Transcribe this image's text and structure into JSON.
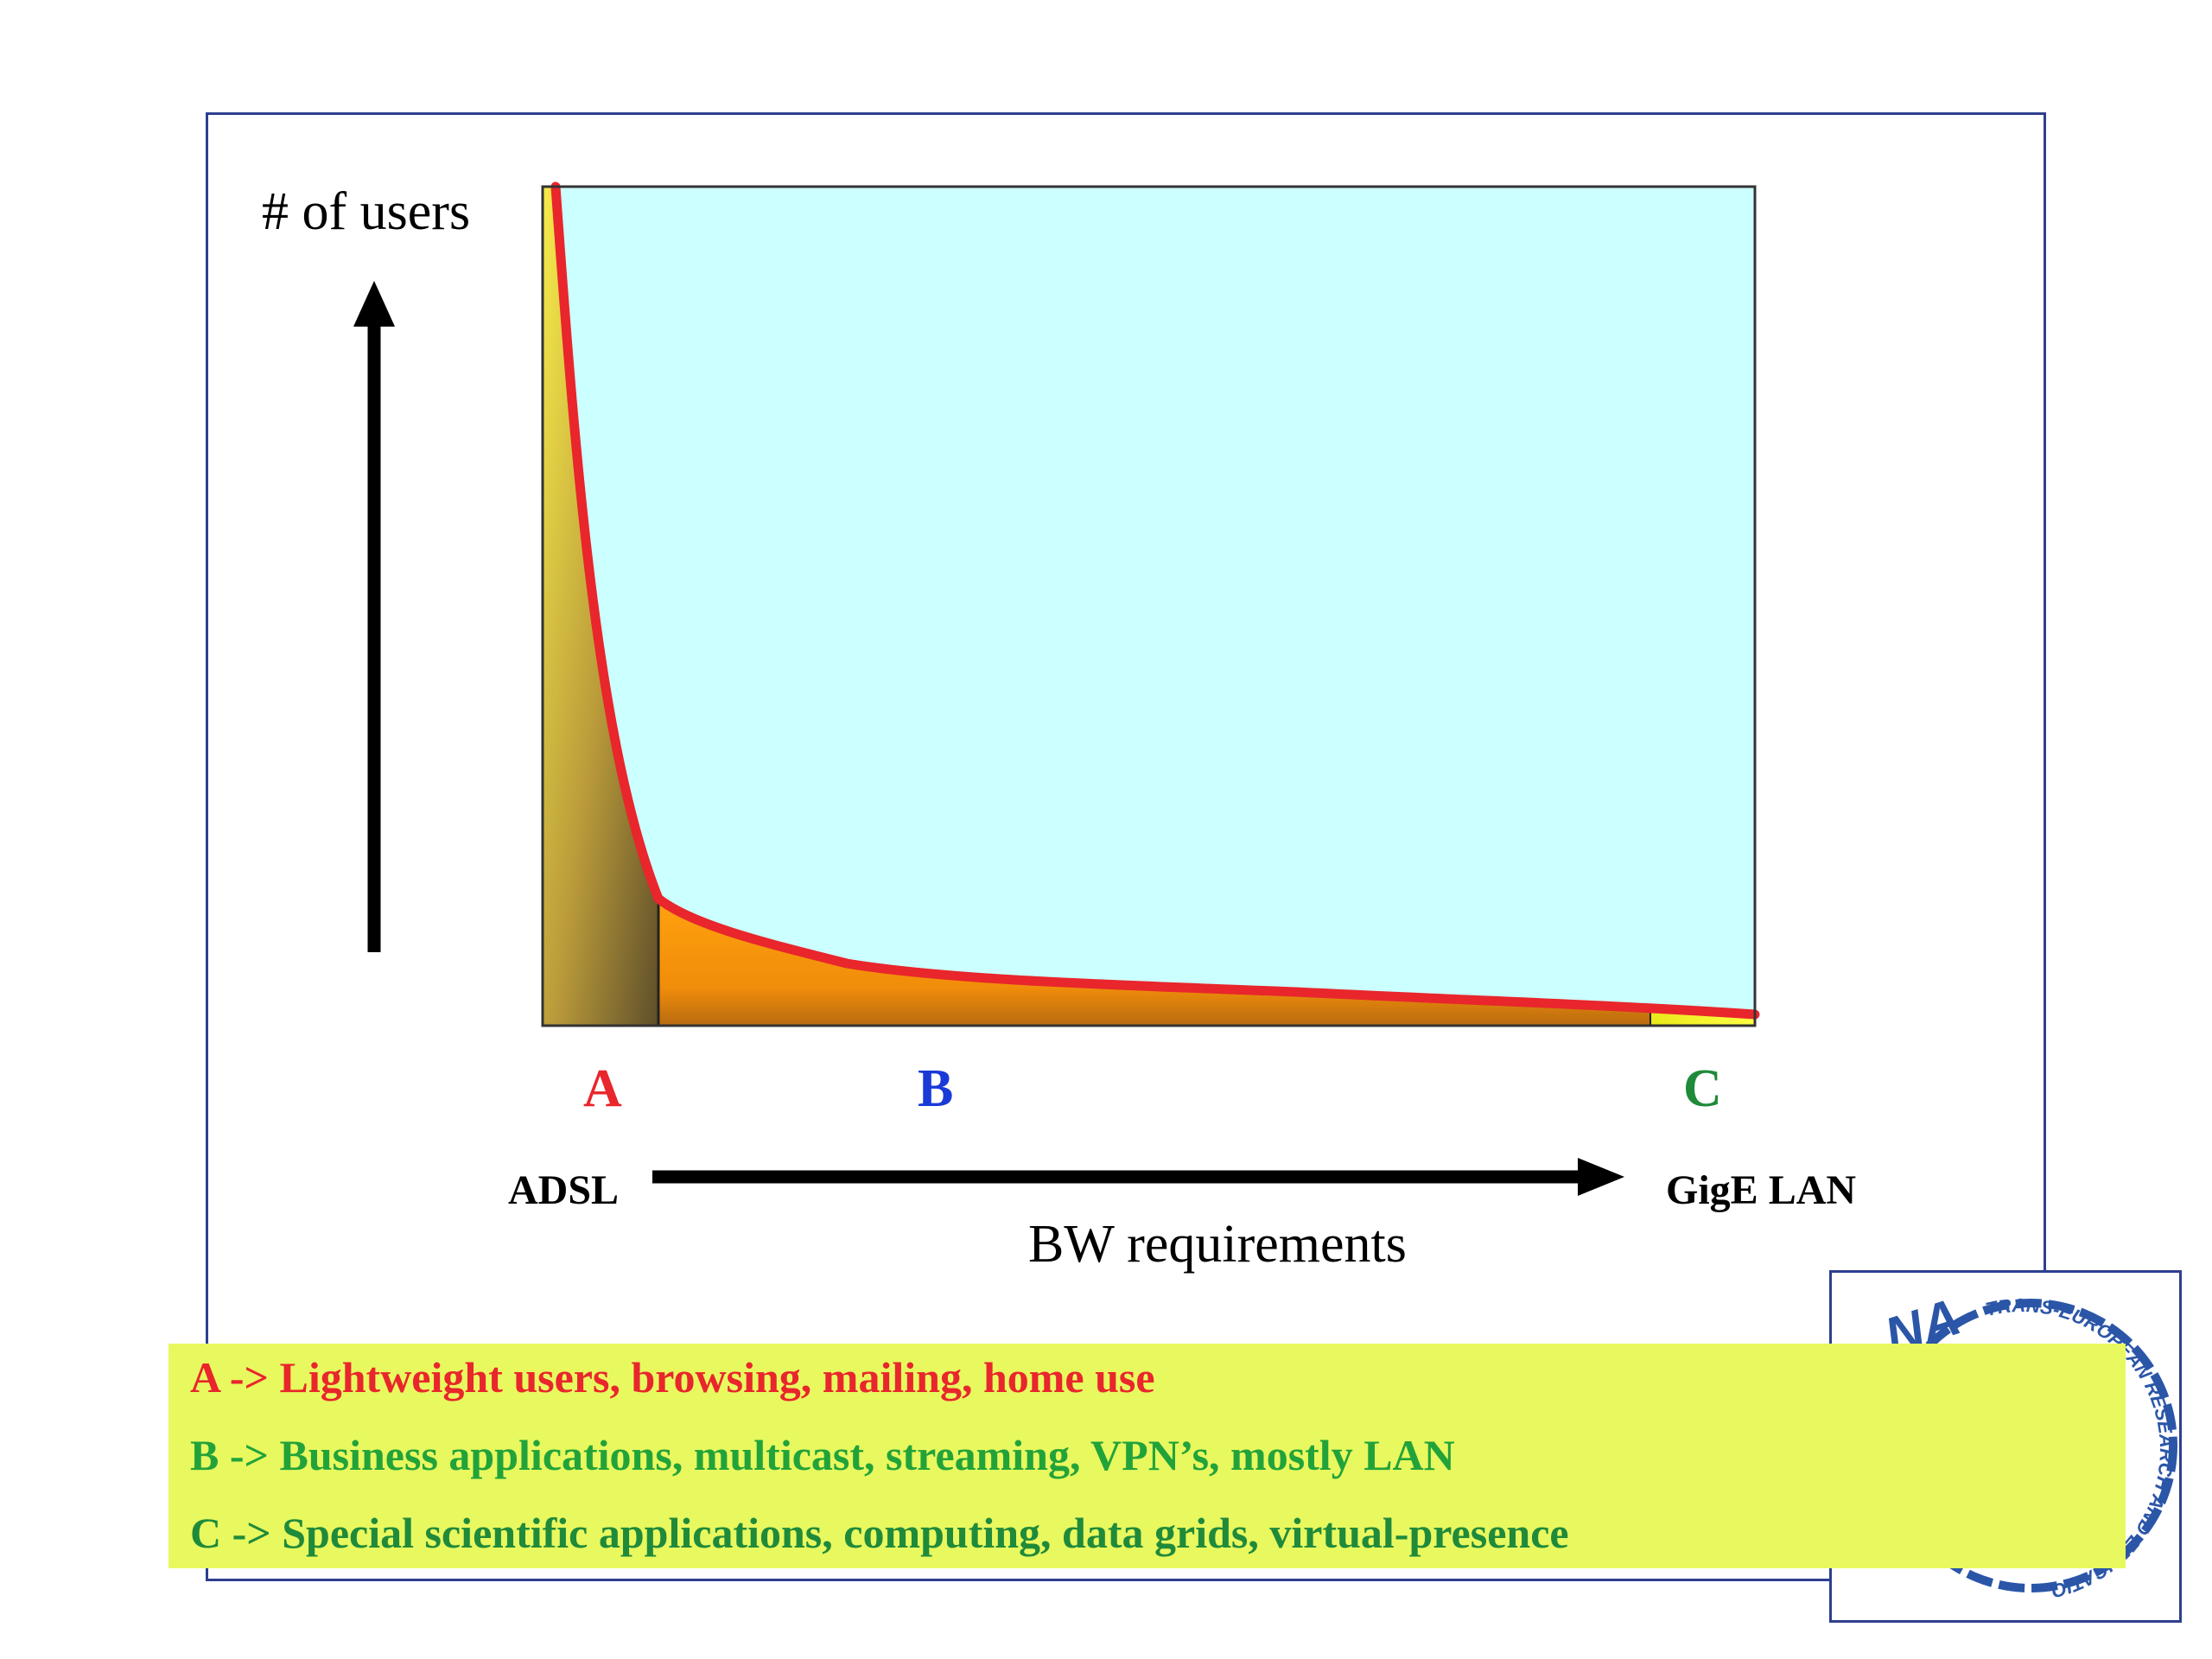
{
  "diagram": {
    "y_axis_label": "# of users",
    "x_axis_label": "BW requirements",
    "x_start_label": "ADSL",
    "x_end_label": "GigE LAN",
    "regions": [
      {
        "id": "A",
        "label": "A",
        "color": "#e8262c"
      },
      {
        "id": "B",
        "label": "B",
        "color": "#1a3ad8"
      },
      {
        "id": "C",
        "label": "C",
        "color": "#1f8a3a"
      }
    ],
    "colors": {
      "plot_background": "#ccffff",
      "curve": "#e8262c",
      "region_a_fill": "#c8a43c",
      "region_b_fill": "#f29b10",
      "region_c_fill": "#f5f51a"
    }
  },
  "legend": {
    "lines": [
      {
        "text": "A -> Lightweight users, browsing, mailing, home use",
        "color": "#e8262c"
      },
      {
        "text": "B -> Business applications, multicast, streaming, VPN’s, mostly LAN",
        "color": "#22a33a"
      },
      {
        "text": "C -> Special scientific applications, computing, data grids, virtual-presence",
        "color": "#1f8a3a"
      }
    ]
  },
  "logo": {
    "icon": "terena-logo-icon",
    "ring_text": "TRANS-EUROPEAN RESEARCH AND EDUCATION NETWORKING ASSOCIATION",
    "mark_text": "NA"
  }
}
